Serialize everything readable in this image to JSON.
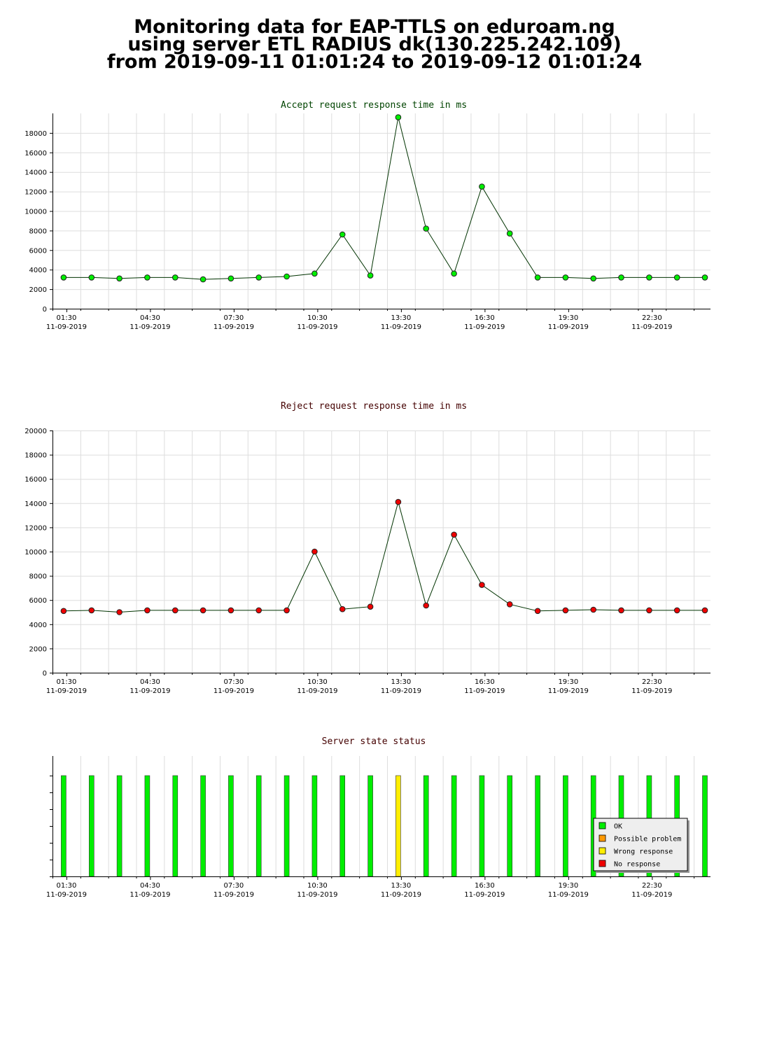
{
  "page_title": {
    "line1": "Monitoring data for EAP-TTLS on eduroam.ng",
    "line2": "using server ETL RADIUS dk(130.225.242.109)",
    "line3": "from 2019-09-11 01:01:24 to 2019-09-12 01:01:24"
  },
  "colors": {
    "accept_title": "#004400",
    "reject_title": "#440000",
    "status_title": "#440000",
    "accept_marker": "#00ee00",
    "reject_marker": "#ee0000",
    "grid": "#dddddd",
    "ok": "#00ee00",
    "possible_problem": "#ff9900",
    "wrong_response": "#ffee00",
    "no_response": "#ee0000"
  },
  "x_tick_labels": [
    {
      "time": "01:30",
      "date": "11-09-2019"
    },
    {
      "time": "04:30",
      "date": "11-09-2019"
    },
    {
      "time": "07:30",
      "date": "11-09-2019"
    },
    {
      "time": "10:30",
      "date": "11-09-2019"
    },
    {
      "time": "13:30",
      "date": "11-09-2019"
    },
    {
      "time": "16:30",
      "date": "11-09-2019"
    },
    {
      "time": "19:30",
      "date": "11-09-2019"
    },
    {
      "time": "22:30",
      "date": "11-09-2019"
    }
  ],
  "chart_data": [
    {
      "type": "line",
      "title": "Accept request response time in ms",
      "x_hours": [
        1.4,
        2.4,
        3.4,
        4.4,
        5.4,
        6.4,
        7.4,
        8.4,
        9.4,
        10.4,
        11.4,
        12.4,
        13.4,
        14.4,
        15.4,
        16.4,
        17.4,
        18.4,
        19.4,
        20.4,
        21.4,
        22.4,
        23.4,
        24.4,
        25.4
      ],
      "values": [
        3200,
        3200,
        3100,
        3200,
        3200,
        3000,
        3100,
        3200,
        3300,
        3600,
        7600,
        3400,
        19600,
        8200,
        3600,
        12500,
        7700,
        3200,
        3200,
        3100,
        3200,
        3200,
        3200,
        3200,
        3200
      ],
      "ylim": [
        0,
        20000
      ],
      "y_ticks": [
        0,
        2000,
        4000,
        6000,
        8000,
        10000,
        12000,
        14000,
        16000,
        18000
      ],
      "xlim_hours": [
        1,
        24.6
      ]
    },
    {
      "type": "line",
      "title": "Reject request response time in ms",
      "x_hours": [
        1.4,
        2.4,
        3.4,
        4.4,
        5.4,
        6.4,
        7.4,
        8.4,
        9.4,
        10.4,
        11.4,
        12.4,
        13.4,
        14.4,
        15.4,
        16.4,
        17.4,
        18.4,
        19.4,
        20.4,
        21.4,
        22.4,
        23.4,
        24.4,
        25.4
      ],
      "values": [
        5100,
        5150,
        5000,
        5150,
        5150,
        5150,
        5150,
        5150,
        5150,
        10000,
        5250,
        5450,
        14100,
        5550,
        11400,
        7250,
        5650,
        5100,
        5150,
        5200,
        5150,
        5150,
        5150,
        5150,
        5150
      ],
      "ylim": [
        0,
        20000
      ],
      "y_ticks": [
        0,
        2000,
        4000,
        6000,
        8000,
        10000,
        12000,
        14000,
        16000,
        18000,
        20000
      ],
      "xlim_hours": [
        1,
        24.6
      ]
    },
    {
      "type": "bar",
      "title": "Server state status",
      "x_hours": [
        1.4,
        2.4,
        3.4,
        4.4,
        5.4,
        6.4,
        7.4,
        8.4,
        9.4,
        10.4,
        11.4,
        12.4,
        13.4,
        14.4,
        15.4,
        16.4,
        17.4,
        18.4,
        19.4,
        20.4,
        21.4,
        22.4,
        23.4,
        24.4,
        25.4
      ],
      "states": [
        "ok",
        "ok",
        "ok",
        "ok",
        "ok",
        "ok",
        "ok",
        "ok",
        "ok",
        "ok",
        "ok",
        "ok",
        "wrong_response",
        "ok",
        "ok",
        "ok",
        "ok",
        "ok",
        "ok",
        "ok",
        "ok",
        "ok",
        "ok",
        "ok",
        "ok"
      ],
      "xlim_hours": [
        1,
        24.6
      ],
      "legend": {
        "position": "bottom-right",
        "items": [
          {
            "key": "ok",
            "label": "OK"
          },
          {
            "key": "possible_problem",
            "label": "Possible problem"
          },
          {
            "key": "wrong_response",
            "label": "Wrong response"
          },
          {
            "key": "no_response",
            "label": "No response"
          }
        ]
      }
    }
  ]
}
